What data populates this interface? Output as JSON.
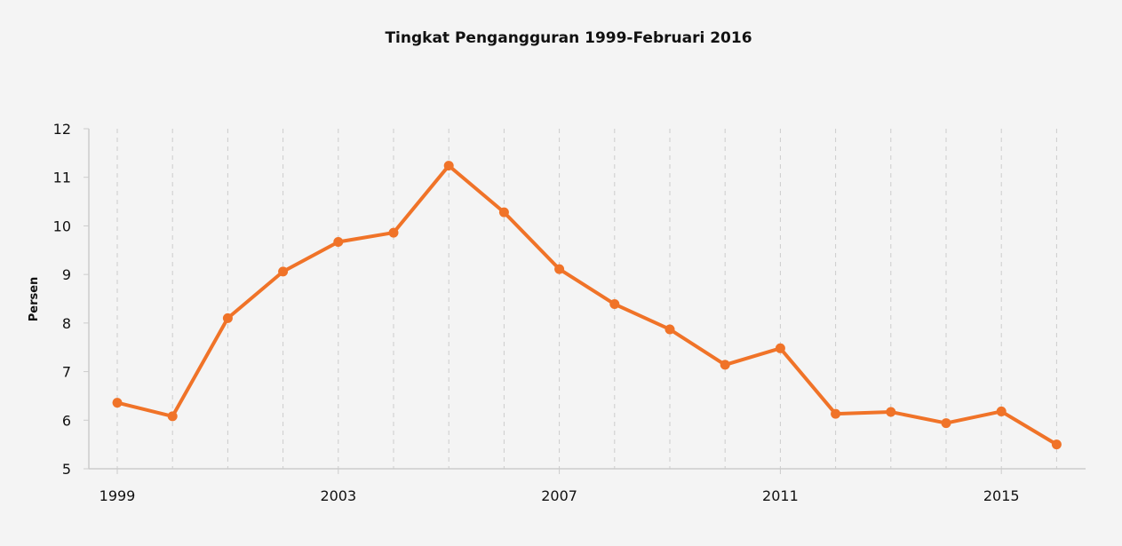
{
  "chart_data": {
    "type": "line",
    "title": "Tingkat Pengangguran 1999-Februari 2016",
    "xlabel": "",
    "ylabel": "Persen",
    "x": [
      1999,
      2000,
      2001,
      2002,
      2003,
      2004,
      2005,
      2006,
      2007,
      2008,
      2009,
      2010,
      2011,
      2012,
      2013,
      2014,
      2015,
      2016
    ],
    "series": [
      {
        "values": [
          6.36,
          6.08,
          8.1,
          9.06,
          9.67,
          9.86,
          11.24,
          10.28,
          9.11,
          8.39,
          7.87,
          7.14,
          7.48,
          6.13,
          6.17,
          5.94,
          6.18,
          5.5
        ]
      }
    ],
    "xticks": [
      "1999",
      "2003",
      "2007",
      "2011",
      "2015"
    ],
    "yticks": [
      "5",
      "6",
      "7",
      "8",
      "9",
      "10",
      "11",
      "12"
    ],
    "ylim": [
      5,
      12
    ],
    "grid": "vertical-dashed",
    "colors": {
      "line": "#f07328",
      "grid": "#cccccc",
      "axis": "#cccccc",
      "background": "#f4f4f4"
    }
  }
}
